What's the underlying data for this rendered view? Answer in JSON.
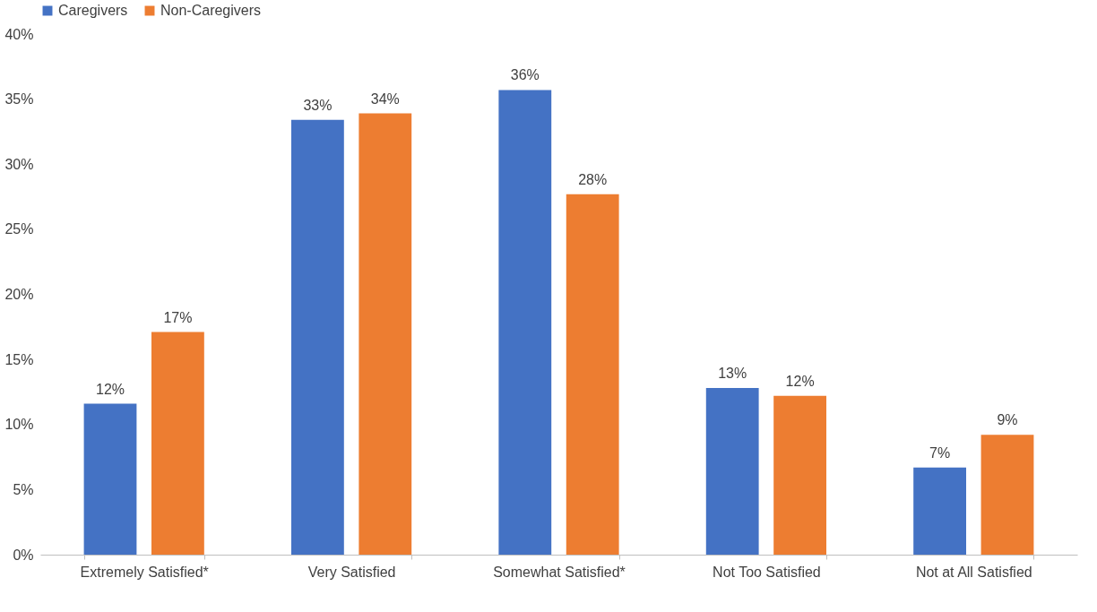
{
  "chart_data": {
    "type": "bar",
    "categories": [
      "Extremely Satisfied*",
      "Very Satisfied",
      "Somewhat Satisfied*",
      "Not Too Satisfied",
      "Not at All Satisfied"
    ],
    "series": [
      {
        "name": "Caregivers",
        "color": "#4472c4",
        "values": [
          11.6,
          33.4,
          35.7,
          12.8,
          6.7
        ],
        "value_labels": [
          "12%",
          "33%",
          "36%",
          "13%",
          "7%"
        ]
      },
      {
        "name": "Non-Caregivers",
        "color": "#ed7d31",
        "values": [
          17.1,
          33.9,
          27.7,
          12.2,
          9.2
        ],
        "value_labels": [
          "17%",
          "34%",
          "28%",
          "12%",
          "9%"
        ]
      }
    ],
    "ylim": [
      0,
      40
    ],
    "yticks": [
      {
        "value": 0,
        "label": "0%"
      },
      {
        "value": 5,
        "label": "5%"
      },
      {
        "value": 10,
        "label": "10%"
      },
      {
        "value": 15,
        "label": "15%"
      },
      {
        "value": 20,
        "label": "20%"
      },
      {
        "value": 25,
        "label": "25%"
      },
      {
        "value": 30,
        "label": "30%"
      },
      {
        "value": 35,
        "label": "35%"
      },
      {
        "value": 40,
        "label": "40%"
      }
    ],
    "grid": false,
    "legend": "top"
  }
}
